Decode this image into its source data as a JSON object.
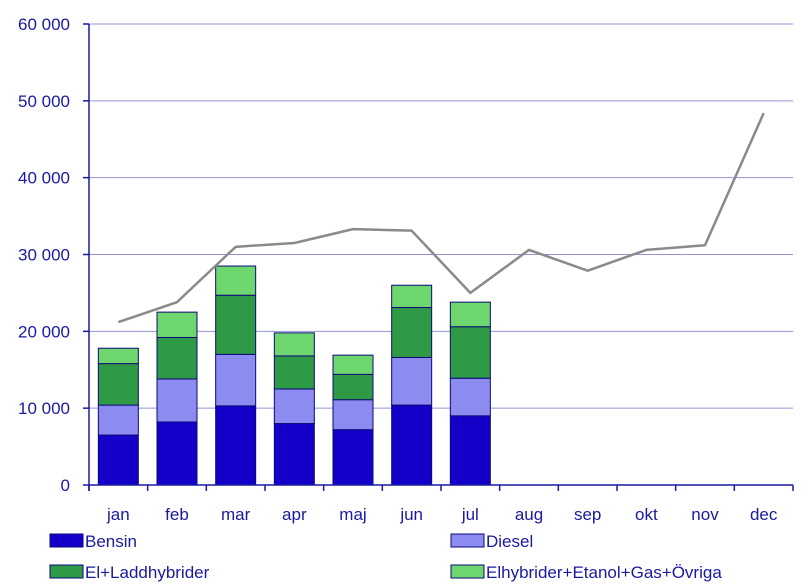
{
  "chart_data": {
    "type": "bar",
    "stacked": true,
    "title": "",
    "xlabel": "",
    "ylabel": "",
    "ylim": [
      0,
      60000
    ],
    "yticks": [
      0,
      10000,
      20000,
      30000,
      40000,
      50000,
      60000
    ],
    "ytick_labels": [
      "0",
      "10 000",
      "20 000",
      "30 000",
      "40 000",
      "50 000",
      "60 000"
    ],
    "grid": true,
    "legend_position": "bottom",
    "categories": [
      "jan",
      "feb",
      "mar",
      "apr",
      "maj",
      "jun",
      "jul",
      "aug",
      "sep",
      "okt",
      "nov",
      "dec"
    ],
    "series": [
      {
        "name": "Bensin",
        "color": "#1400c8",
        "values": [
          6500,
          8200,
          10300,
          8000,
          7200,
          10400,
          9000,
          null,
          null,
          null,
          null,
          null
        ]
      },
      {
        "name": "Diesel",
        "color": "#8c8cf0",
        "values": [
          3900,
          5600,
          6700,
          4500,
          3900,
          6200,
          4900,
          null,
          null,
          null,
          null,
          null
        ]
      },
      {
        "name": "El+Laddhybrider",
        "color": "#2e9a46",
        "values": [
          5400,
          5400,
          7700,
          4300,
          3300,
          6500,
          6700,
          null,
          null,
          null,
          null,
          null
        ]
      },
      {
        "name": "Elhybrider+Etanol+Gas+Övriga",
        "color": "#6ed66e",
        "values": [
          2000,
          3300,
          3800,
          3000,
          2500,
          2900,
          3200,
          null,
          null,
          null,
          null,
          null
        ]
      }
    ],
    "line": {
      "color": "#8a8a8a",
      "values": [
        21200,
        23800,
        31000,
        31500,
        33300,
        33100,
        25000,
        30600,
        27900,
        30600,
        31200,
        48400
      ]
    }
  }
}
